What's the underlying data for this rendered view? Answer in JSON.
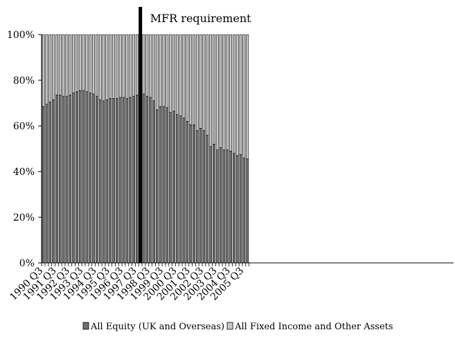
{
  "chart_data": {
    "type": "bar",
    "stacked": true,
    "percent_stacked": true,
    "title": "",
    "xlabel": "",
    "ylabel": "",
    "ylim": [
      0,
      100
    ],
    "y_ticks": [
      "0%",
      "20%",
      "40%",
      "60%",
      "80%",
      "100%"
    ],
    "x_tick_labels": [
      "1990 Q3",
      "1991 Q3",
      "1992 Q3",
      "1993 Q3",
      "1994 Q3",
      "1995 Q3",
      "1996 Q3",
      "1997 Q3",
      "1998 Q3",
      "1999 Q3",
      "2000 Q3",
      "2001 Q3",
      "2002 Q3",
      "2003 Q3",
      "2004 Q3",
      "2005 Q3"
    ],
    "start_quarter": "1990 Q3",
    "grid": false,
    "legend_position": "bottom",
    "series": [
      {
        "name": "All Equity (UK and Overseas)",
        "color": "#707070",
        "values": [
          68.5,
          69.5,
          70.5,
          71.5,
          73.5,
          73.5,
          73,
          73,
          73.5,
          74.5,
          75,
          75.5,
          75.5,
          75,
          74.5,
          74,
          73,
          71.5,
          71,
          71.5,
          72,
          72,
          72,
          72.5,
          72.5,
          72,
          72.5,
          73,
          73.5,
          74,
          74,
          73,
          72.5,
          71,
          67,
          68.5,
          68.5,
          68,
          66,
          66.5,
          65,
          64.5,
          63.5,
          62,
          60.5,
          60.5,
          58,
          59,
          58,
          56,
          51,
          52,
          49.5,
          50.5,
          49.5,
          49.5,
          49,
          48,
          47,
          47.5,
          46,
          45.5
        ]
      },
      {
        "name": "All Fixed Income and Other Assets",
        "color": "#c8c8c8",
        "values": [
          31.5,
          30.5,
          29.5,
          28.5,
          26.5,
          26.5,
          27,
          27,
          26.5,
          25.5,
          25,
          24.5,
          24.5,
          25,
          25.5,
          26,
          27,
          28.5,
          29,
          28.5,
          28,
          28,
          28,
          27.5,
          27.5,
          28,
          27.5,
          27,
          26.5,
          26,
          26,
          27,
          27.5,
          29,
          33,
          31.5,
          31.5,
          32,
          34,
          33.5,
          35,
          35.5,
          36.5,
          38,
          39.5,
          39.5,
          42,
          41,
          42,
          44,
          49,
          48,
          50.5,
          49.5,
          50.5,
          50.5,
          51,
          52,
          53,
          52.5,
          54,
          54.5
        ]
      }
    ],
    "annotations": [
      {
        "text": "MFR requirement",
        "x_index": 29.5
      }
    ]
  }
}
